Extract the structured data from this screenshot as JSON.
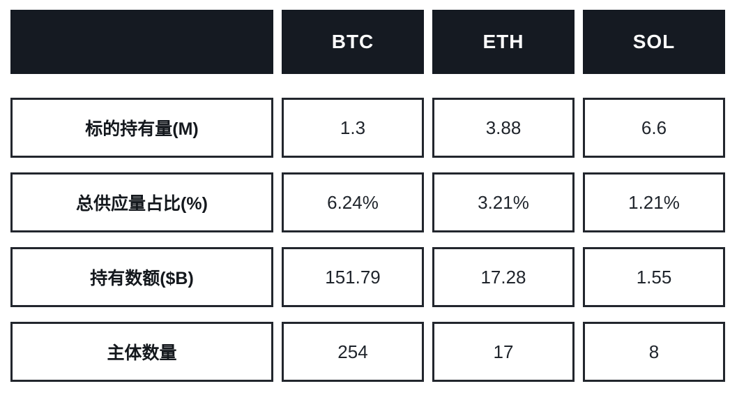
{
  "table": {
    "corner_label": "",
    "columns": [
      "BTC",
      "ETH",
      "SOL"
    ],
    "rows": [
      {
        "label": "标的持有量(M)",
        "values": [
          "1.3",
          "3.88",
          "6.6"
        ]
      },
      {
        "label": "总供应量占比(%)",
        "values": [
          "6.24%",
          "3.21%",
          "1.21%"
        ]
      },
      {
        "label": "持有数额($B)",
        "values": [
          "151.79",
          "17.28",
          "1.55"
        ]
      },
      {
        "label": "主体数量",
        "values": [
          "254",
          "17",
          "8"
        ]
      }
    ]
  },
  "chart_data": {
    "type": "table",
    "title": "",
    "columns": [
      "",
      "BTC",
      "ETH",
      "SOL"
    ],
    "row_labels": [
      "标的持有量(M)",
      "总供应量占比(%)",
      "持有数额($B)",
      "主体数量"
    ],
    "series": [
      {
        "name": "BTC",
        "values": [
          1.3,
          6.24,
          151.79,
          254
        ]
      },
      {
        "name": "ETH",
        "values": [
          3.88,
          3.21,
          17.28,
          17
        ]
      },
      {
        "name": "SOL",
        "values": [
          6.6,
          1.21,
          1.55,
          8
        ]
      }
    ],
    "units": [
      "M",
      "%",
      "$B",
      "count"
    ]
  },
  "colors": {
    "header_background": "#151a22",
    "header_text": "#ffffff",
    "cell_border": "#22262d",
    "cell_background": "#ffffff",
    "label_text": "#14181d",
    "value_text": "#1f242b",
    "page_background": "#ffffff"
  }
}
